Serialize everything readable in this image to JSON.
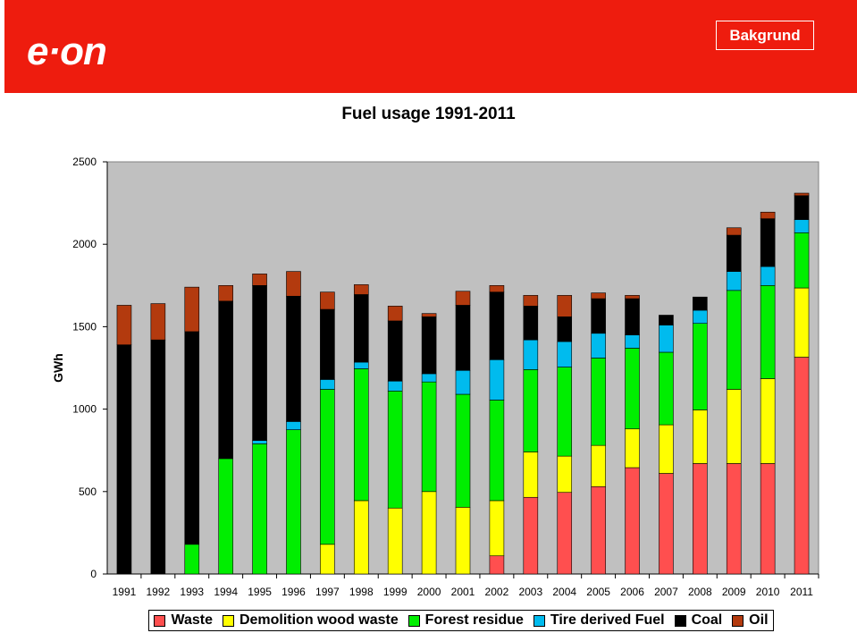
{
  "header": {
    "logo_text": "e·on",
    "badge_label": "Bakgrund",
    "brand_color": "#ee1c0e"
  },
  "chart_data": {
    "type": "bar",
    "stacked": true,
    "title": "Fuel usage 1991-2011",
    "xlabel": "",
    "ylabel": "GWh",
    "ylim": [
      0,
      2500
    ],
    "yticks": [
      0,
      500,
      1000,
      1500,
      2000,
      2500
    ],
    "grid": false,
    "plot_background": "#c0c0c0",
    "legend_position": "bottom",
    "categories": [
      "1991",
      "1992",
      "1993",
      "1994",
      "1995",
      "1996",
      "1997",
      "1998",
      "1999",
      "2000",
      "2001",
      "2002",
      "2003",
      "2004",
      "2005",
      "2006",
      "2007",
      "2008",
      "2009",
      "2010",
      "2011"
    ],
    "series": [
      {
        "name": "Waste",
        "color": "#ff4f4f",
        "values": [
          0,
          0,
          0,
          0,
          0,
          0,
          0,
          0,
          0,
          0,
          0,
          110,
          465,
          495,
          530,
          645,
          610,
          670,
          670,
          670,
          1315
        ]
      },
      {
        "name": "Demolition wood waste",
        "color": "#ffff00",
        "values": [
          0,
          0,
          0,
          0,
          0,
          0,
          180,
          445,
          400,
          500,
          405,
          335,
          275,
          220,
          250,
          235,
          295,
          325,
          450,
          515,
          420
        ]
      },
      {
        "name": "Forest residue",
        "color": "#00ee00",
        "values": [
          0,
          0,
          180,
          700,
          790,
          875,
          940,
          800,
          710,
          665,
          685,
          610,
          500,
          540,
          530,
          490,
          440,
          525,
          600,
          565,
          335
        ]
      },
      {
        "name": "Tire derived Fuel",
        "color": "#00bbee",
        "values": [
          0,
          0,
          0,
          0,
          20,
          50,
          60,
          40,
          60,
          50,
          145,
          245,
          180,
          155,
          150,
          80,
          165,
          80,
          115,
          115,
          80
        ]
      },
      {
        "name": "Coal",
        "color": "#000000",
        "values": [
          1390,
          1420,
          1290,
          955,
          940,
          760,
          425,
          410,
          365,
          345,
          395,
          410,
          205,
          150,
          210,
          220,
          60,
          80,
          220,
          290,
          145
        ]
      },
      {
        "name": "Oil",
        "color": "#b33a0e",
        "values": [
          240,
          220,
          270,
          95,
          70,
          150,
          105,
          60,
          90,
          20,
          85,
          40,
          65,
          130,
          35,
          20,
          0,
          0,
          45,
          40,
          15
        ]
      }
    ]
  }
}
